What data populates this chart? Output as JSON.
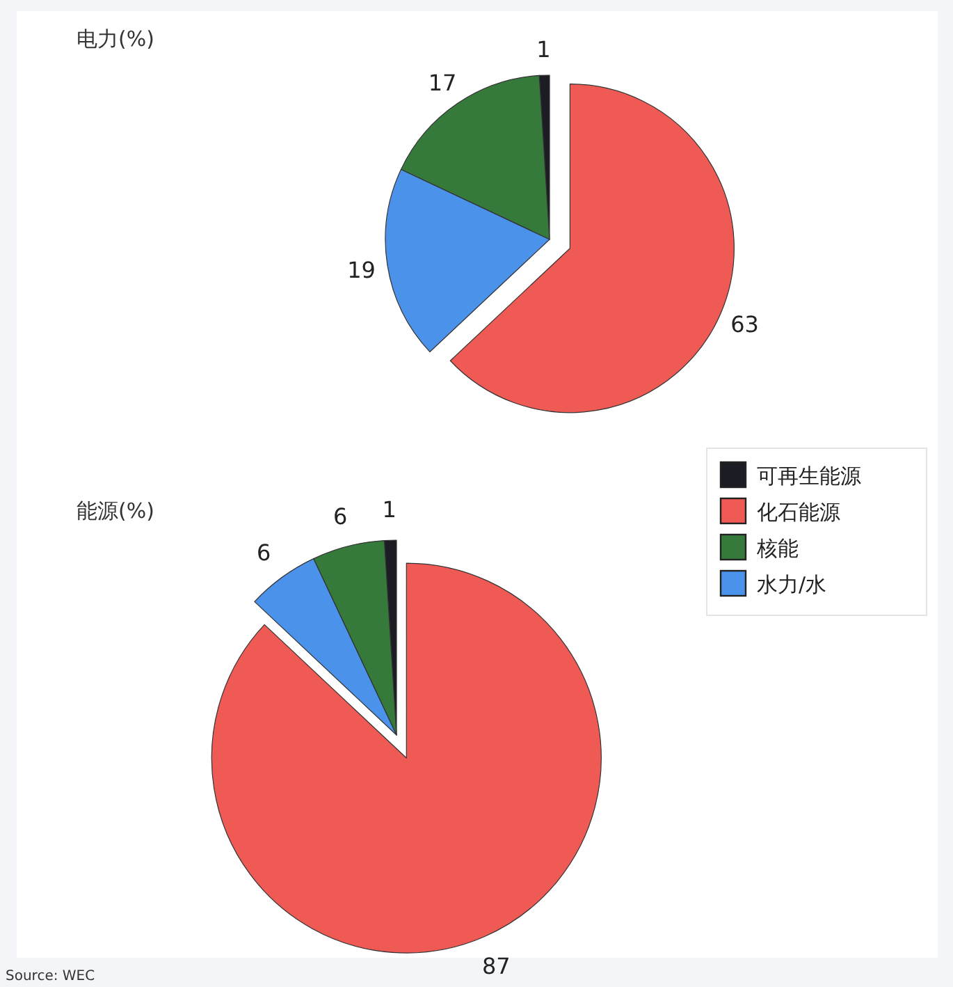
{
  "chart_data": [
    {
      "type": "pie",
      "title": "电力(%)",
      "categories": [
        null,
        null,
        null,
        null
      ],
      "values": [
        1,
        63,
        17,
        19
      ],
      "colors": [
        "#1c1c24",
        "#ef5a55",
        "#357a3a",
        "#4b92ea"
      ],
      "data_labels": true
    },
    {
      "type": "pie",
      "title": "能源(%)",
      "categories": [
        "可再生能源",
        "化石能源",
        "核能",
        "水力/水"
      ],
      "values": [
        1,
        87,
        6,
        6
      ],
      "colors": [
        "#1c1c24",
        "#ef5a55",
        "#357a3a",
        "#4b92ea"
      ],
      "data_labels": true,
      "legend": "top right",
      "annotations": [
        "Source: WEC"
      ]
    }
  ]
}
